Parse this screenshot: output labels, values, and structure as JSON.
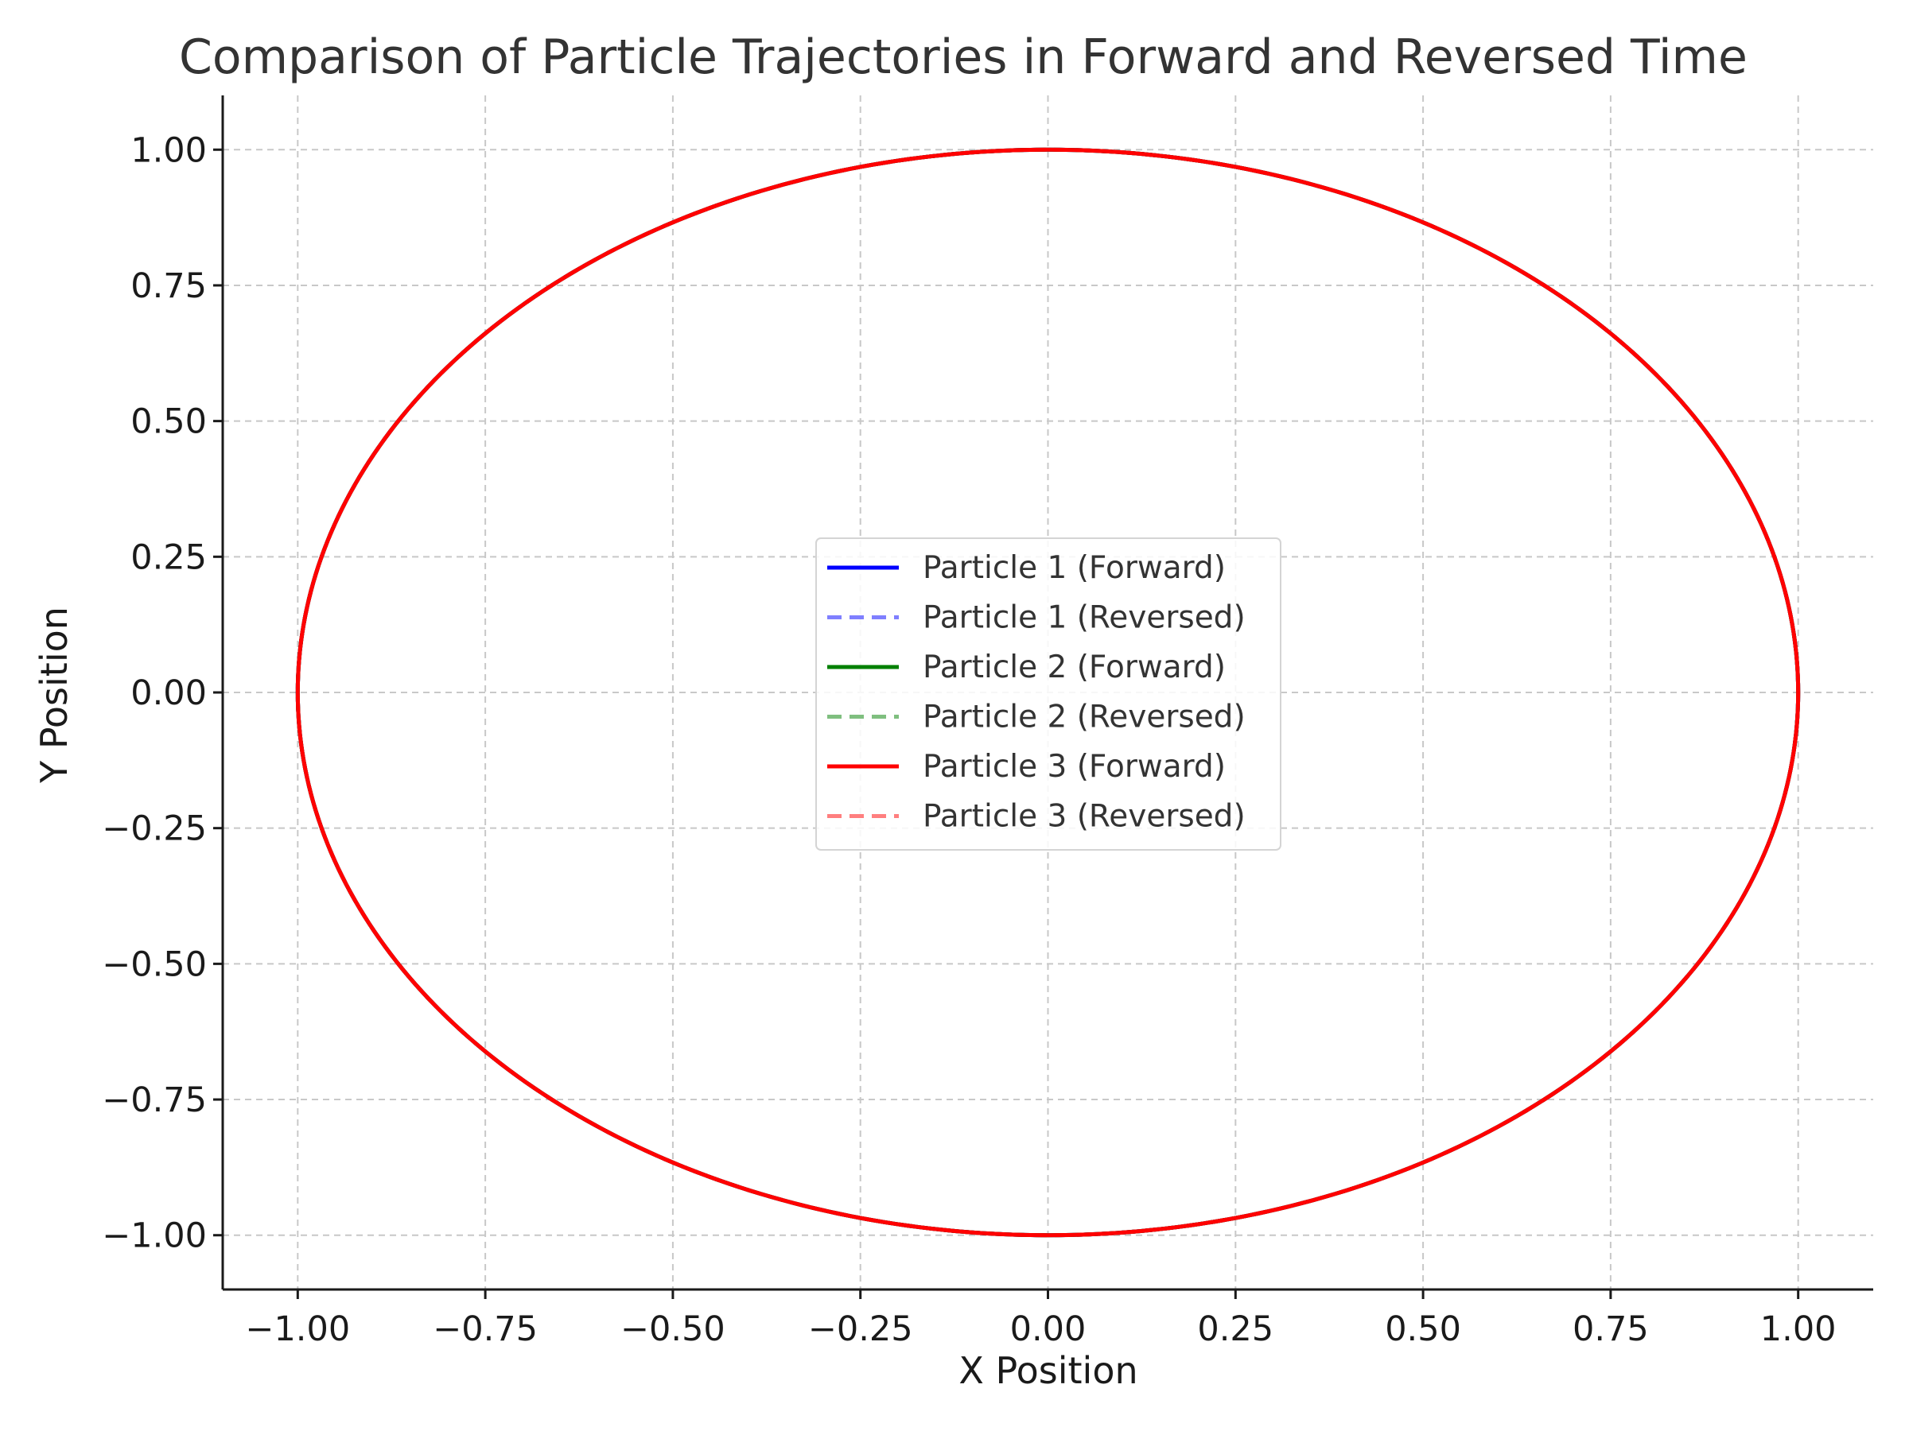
{
  "chart_data": {
    "type": "line",
    "title": "Comparison of Particle Trajectories in Forward and Reversed Time",
    "xlabel": "X Position",
    "ylabel": "Y Position",
    "xlim": [
      -1.1,
      1.1
    ],
    "ylim": [
      -1.1,
      1.1
    ],
    "xticks": [
      -1.0,
      -0.75,
      -0.5,
      -0.25,
      0.0,
      0.25,
      0.5,
      0.75,
      1.0
    ],
    "yticks": [
      -1.0,
      -0.75,
      -0.5,
      -0.25,
      0.0,
      0.25,
      0.5,
      0.75,
      1.0
    ],
    "xtick_labels": [
      "−1.00",
      "−0.75",
      "−0.50",
      "−0.25",
      "0.00",
      "0.25",
      "0.50",
      "0.75",
      "1.00"
    ],
    "ytick_labels": [
      "−1.00",
      "−0.75",
      "−0.50",
      "−0.25",
      "0.00",
      "0.25",
      "0.50",
      "0.75",
      "1.00"
    ],
    "grid": true,
    "legend_position": "center",
    "trajectory_shape": "unit circle x = cos(t), y = sin(t), t from 0 to 2π",
    "series": [
      {
        "name": "Particle 1 (Forward)",
        "color": "#0000ff",
        "style": "solid",
        "opacity": 1.0
      },
      {
        "name": "Particle 1 (Reversed)",
        "color": "#0000ff",
        "style": "dashed",
        "opacity": 0.5
      },
      {
        "name": "Particle 2 (Forward)",
        "color": "#008000",
        "style": "solid",
        "opacity": 1.0
      },
      {
        "name": "Particle 2 (Reversed)",
        "color": "#008000",
        "style": "dashed",
        "opacity": 0.5
      },
      {
        "name": "Particle 3 (Forward)",
        "color": "#ff0000",
        "style": "solid",
        "opacity": 1.0
      },
      {
        "name": "Particle 3 (Reversed)",
        "color": "#ff0000",
        "style": "dashed",
        "opacity": 0.5
      }
    ]
  }
}
